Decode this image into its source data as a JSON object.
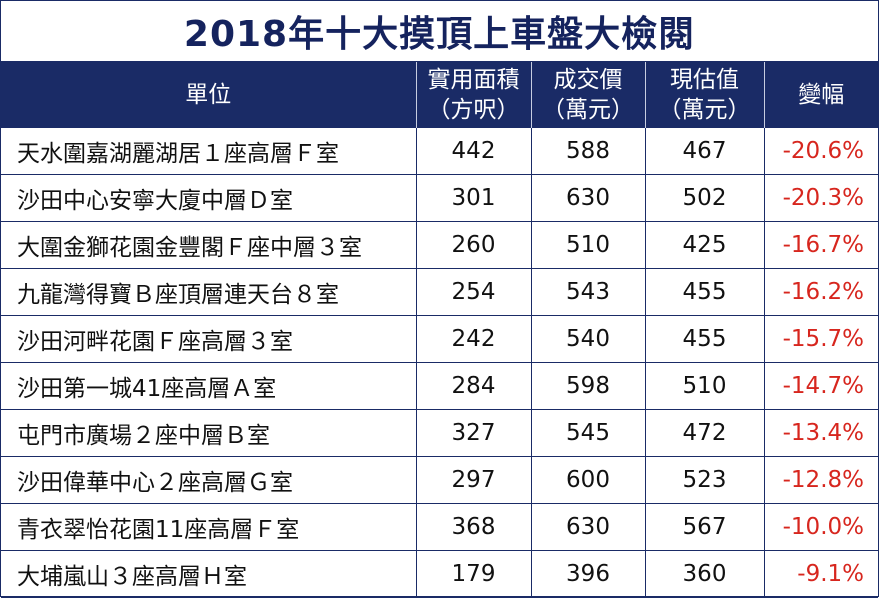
{
  "title": "2018年十大摸頂上車盤大檢閱",
  "colors": {
    "header_bg": "#1a2b66",
    "title": "#15235e",
    "negative": "#d7261e"
  },
  "headers": [
    {
      "line1": "單位",
      "line2": ""
    },
    {
      "line1": "實用面積",
      "line2": "（方呎）"
    },
    {
      "line1": "成交價",
      "line2": "（萬元）"
    },
    {
      "line1": "現估值",
      "line2": "（萬元）"
    },
    {
      "line1": "變幅",
      "line2": ""
    }
  ],
  "rows": [
    {
      "unit": "天水圍嘉湖麗湖居１座高層Ｆ室",
      "area": "442",
      "price": "588",
      "valuation": "467",
      "change": "-20.6%"
    },
    {
      "unit": "沙田中心安寧大廈中層Ｄ室",
      "area": "301",
      "price": "630",
      "valuation": "502",
      "change": "-20.3%"
    },
    {
      "unit": "大圍金獅花園金豐閣Ｆ座中層３室",
      "area": "260",
      "price": "510",
      "valuation": "425",
      "change": "-16.7%"
    },
    {
      "unit": "九龍灣得寶Ｂ座頂層連天台８室",
      "area": "254",
      "price": "543",
      "valuation": "455",
      "change": "-16.2%"
    },
    {
      "unit": "沙田河畔花園Ｆ座高層３室",
      "area": "242",
      "price": "540",
      "valuation": "455",
      "change": "-15.7%"
    },
    {
      "unit": "沙田第一城41座高層Ａ室",
      "area": "284",
      "price": "598",
      "valuation": "510",
      "change": "-14.7%"
    },
    {
      "unit": "屯門市廣場２座中層Ｂ室",
      "area": "327",
      "price": "545",
      "valuation": "472",
      "change": "-13.4%"
    },
    {
      "unit": "沙田偉華中心２座高層Ｇ室",
      "area": "297",
      "price": "600",
      "valuation": "523",
      "change": "-12.8%"
    },
    {
      "unit": "青衣翠怡花園11座高層Ｆ室",
      "area": "368",
      "price": "630",
      "valuation": "567",
      "change": "-10.0%"
    },
    {
      "unit": "大埔嵐山３座高層Ｈ室",
      "area": "179",
      "price": "396",
      "valuation": "360",
      "change": "-9.1%"
    }
  ]
}
